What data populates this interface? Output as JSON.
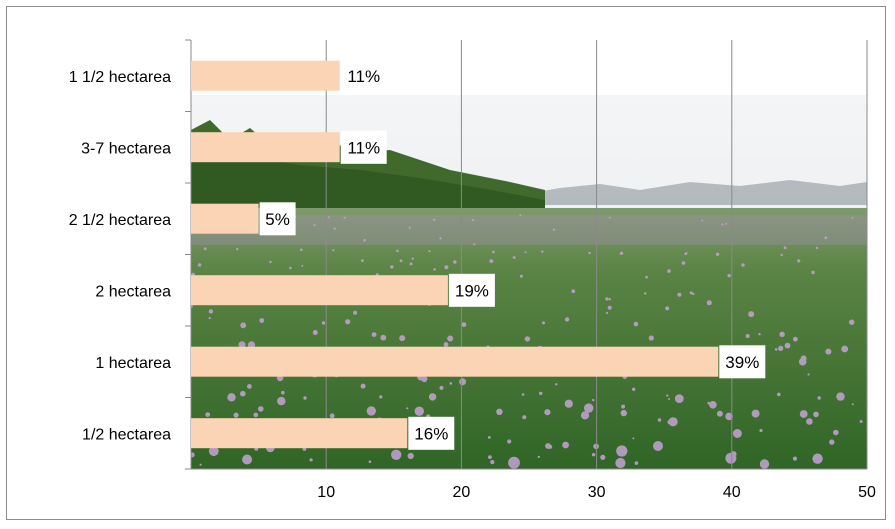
{
  "chart_data": {
    "type": "bar",
    "orientation": "horizontal",
    "categories": [
      "1 1/2 hectarea",
      "3-7 hectarea",
      "2 1/2 hectarea",
      "2 hectarea",
      "1 hectarea",
      "1/2 hectarea"
    ],
    "values": [
      11,
      11,
      5,
      19,
      39,
      16
    ],
    "data_labels": [
      "11%",
      "11%",
      "5%",
      "19%",
      "39%",
      "16%"
    ],
    "xlim": [
      0,
      50
    ],
    "xticks": [
      10,
      20,
      30,
      40,
      50
    ],
    "grid": "vertical",
    "bar_color": "#FAD4B4",
    "label_box_color": "#ffffff",
    "background": "photo of flowering potato field with trees and distant hills",
    "title": "",
    "xlabel": "",
    "ylabel": ""
  }
}
